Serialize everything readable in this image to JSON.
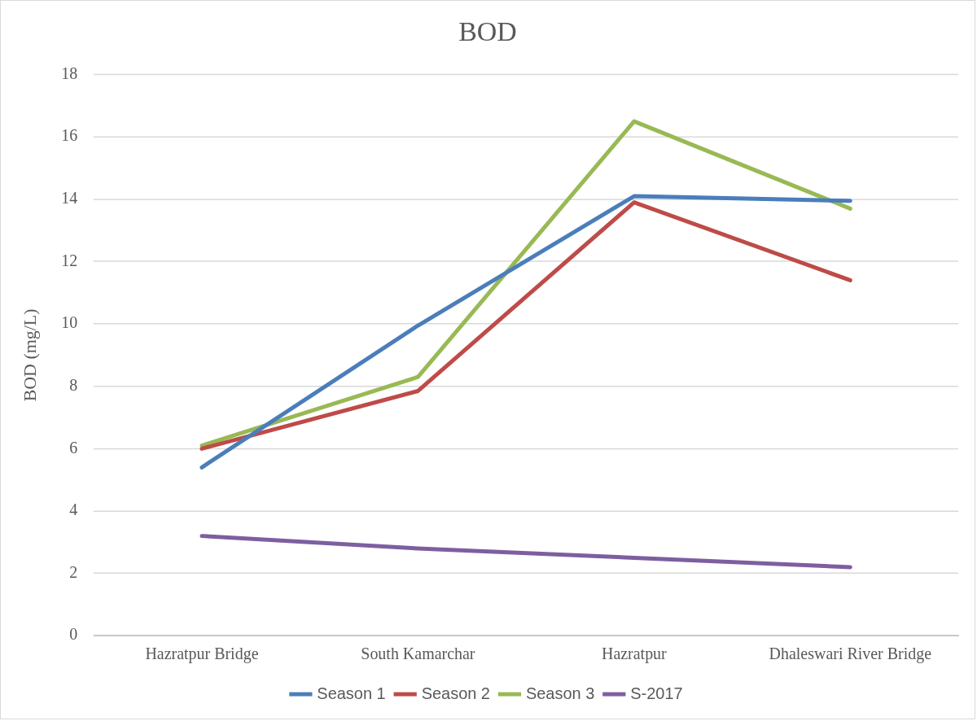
{
  "chart_data": {
    "type": "line",
    "title": "BOD",
    "ylabel": "BOD (mg/L)",
    "categories": [
      "Hazratpur Bridge",
      "South Kamarchar",
      "Hazratpur",
      "Dhaleswari River Bridge"
    ],
    "series": [
      {
        "name": "Season 1",
        "color": "#4a7ebb",
        "values": [
          5.4,
          9.95,
          14.1,
          13.95
        ]
      },
      {
        "name": "Season 2",
        "color": "#be4b48",
        "values": [
          6.0,
          7.85,
          13.9,
          11.4
        ]
      },
      {
        "name": "Season 3",
        "color": "#98b954",
        "values": [
          6.1,
          8.3,
          16.5,
          13.7
        ]
      },
      {
        "name": "S-2017",
        "color": "#7d5fa0",
        "values": [
          3.2,
          2.8,
          2.5,
          2.2
        ]
      }
    ],
    "ylim": [
      0,
      18
    ],
    "yticks": [
      0,
      2,
      4,
      6,
      8,
      10,
      12,
      14,
      16,
      18
    ],
    "grid": "y",
    "legend": "bottom",
    "marker": "none",
    "line_style": "solid"
  }
}
